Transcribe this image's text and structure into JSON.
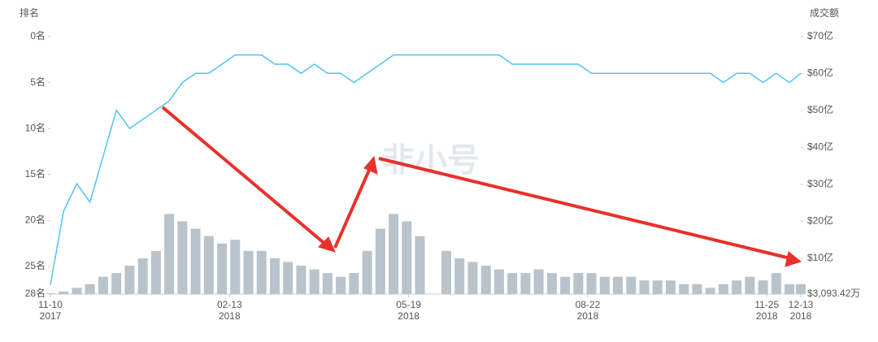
{
  "chart_data": {
    "type": "bar-line",
    "y_title": "排名",
    "y2_title": "成交额",
    "watermark": "非小号",
    "x": [
      "2017-11-10",
      "2017-11-17",
      "2017-11-24",
      "2017-12-01",
      "2017-12-08",
      "2017-12-15",
      "2017-12-22",
      "2017-12-29",
      "2018-01-05",
      "2018-01-12",
      "2018-01-19",
      "2018-01-26",
      "2018-02-02",
      "2018-02-09",
      "2018-02-16",
      "2018-02-23",
      "2018-03-02",
      "2018-03-09",
      "2018-03-16",
      "2018-03-23",
      "2018-03-30",
      "2018-04-06",
      "2018-04-13",
      "2018-04-20",
      "2018-04-27",
      "2018-05-04",
      "2018-05-11",
      "2018-05-18",
      "2018-05-25",
      "2018-06-01",
      "2018-06-08",
      "2018-06-15",
      "2018-06-22",
      "2018-06-29",
      "2018-07-06",
      "2018-07-13",
      "2018-07-20",
      "2018-07-27",
      "2018-08-03",
      "2018-08-10",
      "2018-08-17",
      "2018-08-24",
      "2018-08-31",
      "2018-09-07",
      "2018-09-14",
      "2018-09-21",
      "2018-09-28",
      "2018-10-05",
      "2018-10-12",
      "2018-10-19",
      "2018-10-26",
      "2018-11-02",
      "2018-11-09",
      "2018-11-16",
      "2018-11-23",
      "2018-11-30",
      "2018-12-07",
      "2018-12-13"
    ],
    "xlim": [
      "2017-11-10",
      "2018-12-13"
    ],
    "xticks": [
      {
        "value": "2017-11-10",
        "label": [
          "11-10",
          "2017"
        ]
      },
      {
        "value": "2018-02-13",
        "label": [
          "02-13",
          "2018"
        ]
      },
      {
        "value": "2018-05-19",
        "label": [
          "05-19",
          "2018"
        ]
      },
      {
        "value": "2018-08-22",
        "label": [
          "08-22",
          "2018"
        ]
      },
      {
        "value": "2018-11-25",
        "label": [
          "11-25",
          "2018"
        ]
      },
      {
        "value": "2018-12-13",
        "label": [
          "12-13",
          "2018"
        ]
      }
    ],
    "ylim": [
      0,
      28
    ],
    "y_inverted": true,
    "yticks": [
      {
        "value": 0,
        "label": "0名"
      },
      {
        "value": 5,
        "label": "5名"
      },
      {
        "value": 10,
        "label": "10名"
      },
      {
        "value": 15,
        "label": "15名"
      },
      {
        "value": 20,
        "label": "20名"
      },
      {
        "value": 25,
        "label": "25名"
      },
      {
        "value": 28,
        "label": "28名"
      }
    ],
    "y2lim": [
      0.309342,
      70
    ],
    "y2ticks": [
      {
        "value": 0.309342,
        "label": "$3,093.42万"
      },
      {
        "value": 10,
        "label": "$10亿"
      },
      {
        "value": 20,
        "label": "$20亿"
      },
      {
        "value": 30,
        "label": "$30亿"
      },
      {
        "value": 40,
        "label": "$40亿"
      },
      {
        "value": 50,
        "label": "$50亿"
      },
      {
        "value": 60,
        "label": "$60亿"
      },
      {
        "value": 70,
        "label": "$70亿"
      }
    ],
    "series": [
      {
        "type": "line",
        "axis": "y",
        "color": "#4fc3f7",
        "values": [
          27,
          19,
          16,
          18,
          13,
          8,
          10,
          9,
          8,
          7,
          5,
          4,
          4,
          3,
          2,
          2,
          2,
          3,
          3,
          4,
          3,
          4,
          4,
          5,
          4,
          3,
          2,
          2,
          2,
          2,
          2,
          2,
          2,
          2,
          2,
          3,
          3,
          3,
          3,
          3,
          3,
          4,
          4,
          4,
          4,
          4,
          4,
          4,
          4,
          4,
          4,
          5,
          4,
          4,
          5,
          4,
          5,
          4
        ]
      },
      {
        "type": "bar",
        "axis": "y2",
        "color": "#b9c3cb",
        "values": [
          0.5,
          1,
          2,
          3,
          5,
          6,
          8,
          10,
          12,
          22,
          20,
          18,
          16,
          14,
          15,
          12,
          12,
          10,
          9,
          8,
          7,
          6,
          5,
          6,
          12,
          18,
          22,
          20,
          16,
          null,
          12,
          10,
          9,
          8,
          7,
          6,
          6,
          7,
          6,
          5,
          6,
          6,
          5,
          5,
          5,
          4,
          4,
          4,
          3,
          3,
          2,
          3,
          4,
          5,
          4,
          6,
          3,
          3
        ]
      }
    ]
  }
}
